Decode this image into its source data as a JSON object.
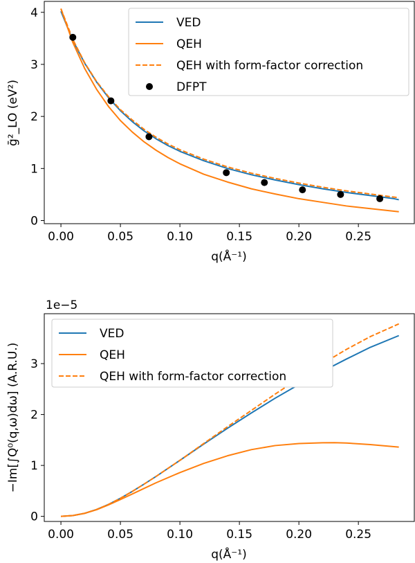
{
  "chart_data": [
    {
      "type": "line",
      "xlabel": "q(Å⁻¹)",
      "ylabel": "ḡ²_LO (eV²)",
      "xlim": [
        -0.014,
        0.297
      ],
      "ylim": [
        -0.06,
        4.21
      ],
      "xticks": [
        0.0,
        0.05,
        0.1,
        0.15,
        0.2,
        0.25
      ],
      "xtick_labels": [
        "0.00",
        "0.05",
        "0.10",
        "0.15",
        "0.20",
        "0.25"
      ],
      "yticks": [
        0,
        1,
        2,
        3,
        4
      ],
      "ytick_labels": [
        "0",
        "1",
        "2",
        "3",
        "4"
      ],
      "legend_position": "top-right",
      "grid": false,
      "series": [
        {
          "name": "VED",
          "style": "solid",
          "color": "#1f77b4",
          "x": [
            0.0,
            0.01,
            0.02,
            0.03,
            0.04,
            0.05,
            0.06,
            0.07,
            0.08,
            0.09,
            0.1,
            0.12,
            0.14,
            0.16,
            0.18,
            0.2,
            0.22,
            0.24,
            0.26,
            0.28,
            0.284
          ],
          "y": [
            4.02,
            3.46,
            3.02,
            2.66,
            2.36,
            2.11,
            1.9,
            1.72,
            1.57,
            1.44,
            1.33,
            1.15,
            1.0,
            0.88,
            0.78,
            0.69,
            0.61,
            0.54,
            0.48,
            0.42,
            0.4
          ]
        },
        {
          "name": "QEH",
          "style": "solid",
          "color": "#ff7f0e",
          "x": [
            0.0,
            0.01,
            0.02,
            0.03,
            0.04,
            0.05,
            0.06,
            0.07,
            0.08,
            0.09,
            0.1,
            0.12,
            0.14,
            0.16,
            0.18,
            0.2,
            0.22,
            0.24,
            0.26,
            0.28,
            0.284
          ],
          "y": [
            4.07,
            3.42,
            2.92,
            2.52,
            2.19,
            1.92,
            1.7,
            1.51,
            1.35,
            1.21,
            1.09,
            0.89,
            0.74,
            0.61,
            0.51,
            0.42,
            0.35,
            0.28,
            0.23,
            0.18,
            0.17
          ]
        },
        {
          "name": "QEH with form-factor correction",
          "style": "dashed",
          "color": "#ff7f0e",
          "x": [
            0.0,
            0.01,
            0.02,
            0.03,
            0.04,
            0.05,
            0.06,
            0.07,
            0.08,
            0.09,
            0.1,
            0.12,
            0.14,
            0.16,
            0.18,
            0.2,
            0.22,
            0.24,
            0.26,
            0.28,
            0.284
          ],
          "y": [
            4.07,
            3.48,
            3.03,
            2.67,
            2.38,
            2.13,
            1.93,
            1.75,
            1.6,
            1.47,
            1.36,
            1.18,
            1.03,
            0.91,
            0.81,
            0.72,
            0.64,
            0.57,
            0.51,
            0.45,
            0.44
          ]
        },
        {
          "name": "DFPT",
          "style": "points",
          "color": "#000000",
          "x": [
            0.01,
            0.042,
            0.074,
            0.139,
            0.171,
            0.203,
            0.235,
            0.268
          ],
          "y": [
            3.52,
            2.3,
            1.61,
            0.92,
            0.73,
            0.59,
            0.5,
            0.42
          ]
        }
      ]
    },
    {
      "type": "line",
      "xlabel": "q(Å⁻¹)",
      "ylabel": "−Im[∫Q⁰(q,ω)dω] (A.R.U.)",
      "offset_label": "1e−5",
      "xlim": [
        -0.014,
        0.297
      ],
      "ylim": [
        -0.1,
        3.98
      ],
      "xticks": [
        0.0,
        0.05,
        0.1,
        0.15,
        0.2,
        0.25
      ],
      "xtick_labels": [
        "0.00",
        "0.05",
        "0.10",
        "0.15",
        "0.20",
        "0.25"
      ],
      "yticks": [
        0,
        1,
        2,
        3
      ],
      "ytick_labels": [
        "0",
        "1",
        "2",
        "3"
      ],
      "legend_position": "top-left",
      "grid": false,
      "series": [
        {
          "name": "VED",
          "style": "solid",
          "color": "#1f77b4",
          "x": [
            0.0,
            0.01,
            0.02,
            0.03,
            0.04,
            0.05,
            0.06,
            0.07,
            0.08,
            0.1,
            0.12,
            0.14,
            0.16,
            0.18,
            0.2,
            0.22,
            0.24,
            0.26,
            0.284
          ],
          "y": [
            0.0,
            0.015,
            0.06,
            0.135,
            0.235,
            0.355,
            0.49,
            0.635,
            0.785,
            1.1,
            1.42,
            1.73,
            2.03,
            2.32,
            2.59,
            2.85,
            3.09,
            3.32,
            3.55
          ]
        },
        {
          "name": "QEH",
          "style": "solid",
          "color": "#ff7f0e",
          "x": [
            0.0,
            0.01,
            0.02,
            0.03,
            0.04,
            0.05,
            0.06,
            0.07,
            0.08,
            0.1,
            0.12,
            0.14,
            0.16,
            0.18,
            0.2,
            0.22,
            0.23,
            0.24,
            0.26,
            0.284
          ],
          "y": [
            0.0,
            0.015,
            0.06,
            0.13,
            0.225,
            0.33,
            0.44,
            0.55,
            0.66,
            0.86,
            1.04,
            1.19,
            1.31,
            1.39,
            1.43,
            1.445,
            1.447,
            1.44,
            1.41,
            1.36
          ]
        },
        {
          "name": "QEH with form-factor correction",
          "style": "dashed",
          "color": "#ff7f0e",
          "x": [
            0.0,
            0.01,
            0.02,
            0.03,
            0.04,
            0.05,
            0.06,
            0.07,
            0.08,
            0.1,
            0.12,
            0.14,
            0.16,
            0.18,
            0.2,
            0.22,
            0.24,
            0.26,
            0.284
          ],
          "y": [
            0.0,
            0.015,
            0.06,
            0.135,
            0.235,
            0.355,
            0.49,
            0.635,
            0.785,
            1.1,
            1.43,
            1.76,
            2.08,
            2.4,
            2.71,
            3.0,
            3.28,
            3.53,
            3.78
          ]
        }
      ]
    }
  ]
}
